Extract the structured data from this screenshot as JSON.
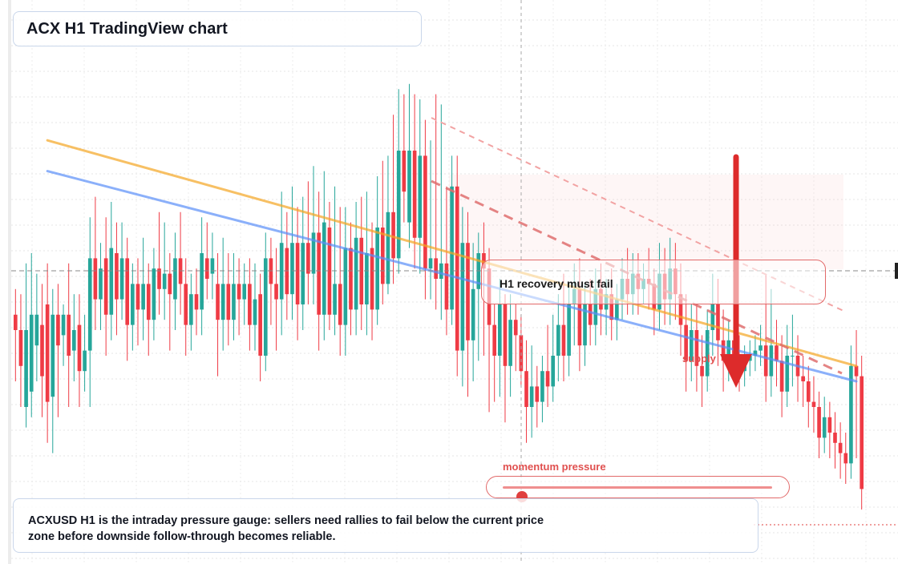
{
  "title": "ACX H1 TradingView chart",
  "callout": "H1 recovery must fail",
  "supply_label": "supply",
  "gauge": {
    "label": "momentum pressure",
    "value": 0.07
  },
  "note": "ACXUSD H1 is the intraday pressure gauge: sellers need rallies to fail below the current price zone before downside follow-through becomes reliable.",
  "colors": {
    "up": "#26a69a",
    "down": "#ef3b45",
    "trend_orange": "#f5a623",
    "trend_blue": "#5b8ff9",
    "accent": "#e0403f"
  },
  "chart_data": {
    "type": "candlestick",
    "title": "ACX H1 TradingView chart",
    "ylim": [
      0,
      100
    ],
    "grid": true,
    "candles": [
      {
        "o": 48,
        "c": 45,
        "h": 53,
        "l": 35
      },
      {
        "o": 45,
        "c": 38,
        "h": 52,
        "l": 30
      },
      {
        "o": 30,
        "c": 45,
        "h": 58,
        "l": 26
      },
      {
        "o": 33,
        "c": 48,
        "h": 60,
        "l": 28
      },
      {
        "o": 42,
        "c": 48,
        "h": 56,
        "l": 35
      },
      {
        "o": 46,
        "c": 36,
        "h": 54,
        "l": 28
      },
      {
        "o": 50,
        "c": 31,
        "h": 58,
        "l": 23
      },
      {
        "o": 32,
        "c": 48,
        "h": 53,
        "l": 21
      },
      {
        "o": 48,
        "c": 42,
        "h": 54,
        "l": 28
      },
      {
        "o": 44,
        "c": 48,
        "h": 50,
        "l": 38
      },
      {
        "o": 48,
        "c": 40,
        "h": 58,
        "l": 30
      },
      {
        "o": 41,
        "c": 45,
        "h": 52,
        "l": 35
      },
      {
        "o": 46,
        "c": 37,
        "h": 52,
        "l": 30
      },
      {
        "o": 37,
        "c": 41,
        "h": 48,
        "l": 33
      },
      {
        "o": 41,
        "c": 59,
        "h": 67,
        "l": 30
      },
      {
        "o": 59,
        "c": 51,
        "h": 71,
        "l": 45
      },
      {
        "o": 51,
        "c": 57,
        "h": 62,
        "l": 45
      },
      {
        "o": 59,
        "c": 48,
        "h": 67,
        "l": 40
      },
      {
        "o": 48,
        "c": 61,
        "h": 70,
        "l": 43
      },
      {
        "o": 60,
        "c": 51,
        "h": 66,
        "l": 44
      },
      {
        "o": 51,
        "c": 59,
        "h": 66,
        "l": 47
      },
      {
        "o": 59,
        "c": 46,
        "h": 63,
        "l": 39
      },
      {
        "o": 46,
        "c": 54,
        "h": 58,
        "l": 41
      },
      {
        "o": 54,
        "c": 49,
        "h": 59,
        "l": 42
      },
      {
        "o": 49,
        "c": 54,
        "h": 63,
        "l": 43
      },
      {
        "o": 54,
        "c": 47,
        "h": 58,
        "l": 40
      },
      {
        "o": 47,
        "c": 57,
        "h": 61,
        "l": 43
      },
      {
        "o": 57,
        "c": 53,
        "h": 68,
        "l": 48
      },
      {
        "o": 53,
        "c": 56,
        "h": 66,
        "l": 47
      },
      {
        "o": 56,
        "c": 52,
        "h": 60,
        "l": 41
      },
      {
        "o": 51,
        "c": 59,
        "h": 64,
        "l": 45
      },
      {
        "o": 59,
        "c": 54,
        "h": 68,
        "l": 48
      },
      {
        "o": 54,
        "c": 46,
        "h": 59,
        "l": 40
      },
      {
        "o": 46,
        "c": 52,
        "h": 56,
        "l": 41
      },
      {
        "o": 52,
        "c": 49,
        "h": 57,
        "l": 44
      },
      {
        "o": 49,
        "c": 60,
        "h": 67,
        "l": 44
      },
      {
        "o": 59,
        "c": 55,
        "h": 66,
        "l": 51
      },
      {
        "o": 56,
        "c": 59,
        "h": 64,
        "l": 51
      },
      {
        "o": 54,
        "c": 47,
        "h": 60,
        "l": 36
      },
      {
        "o": 47,
        "c": 54,
        "h": 63,
        "l": 41
      },
      {
        "o": 54,
        "c": 47,
        "h": 60,
        "l": 42
      },
      {
        "o": 47,
        "c": 54,
        "h": 60,
        "l": 43
      },
      {
        "o": 54,
        "c": 51,
        "h": 59,
        "l": 44
      },
      {
        "o": 51,
        "c": 54,
        "h": 58,
        "l": 46
      },
      {
        "o": 54,
        "c": 46,
        "h": 59,
        "l": 41
      },
      {
        "o": 46,
        "c": 51,
        "h": 58,
        "l": 41
      },
      {
        "o": 52,
        "c": 40,
        "h": 56,
        "l": 35
      },
      {
        "o": 40,
        "c": 59,
        "h": 64,
        "l": 37
      },
      {
        "o": 59,
        "c": 54,
        "h": 63,
        "l": 46
      },
      {
        "o": 54,
        "c": 51,
        "h": 61,
        "l": 41
      },
      {
        "o": 51,
        "c": 62,
        "h": 72,
        "l": 44
      },
      {
        "o": 61,
        "c": 52,
        "h": 68,
        "l": 47
      },
      {
        "o": 52,
        "c": 62,
        "h": 73,
        "l": 47
      },
      {
        "o": 62,
        "c": 50,
        "h": 69,
        "l": 43
      },
      {
        "o": 50,
        "c": 62,
        "h": 71,
        "l": 45
      },
      {
        "o": 62,
        "c": 56,
        "h": 74,
        "l": 50
      },
      {
        "o": 56,
        "c": 64,
        "h": 77,
        "l": 50
      },
      {
        "o": 64,
        "c": 48,
        "h": 72,
        "l": 41
      },
      {
        "o": 48,
        "c": 66,
        "h": 76,
        "l": 43
      },
      {
        "o": 65,
        "c": 48,
        "h": 70,
        "l": 45
      },
      {
        "o": 48,
        "c": 54,
        "h": 73,
        "l": 44
      },
      {
        "o": 54,
        "c": 46,
        "h": 69,
        "l": 40
      },
      {
        "o": 46,
        "c": 61,
        "h": 69,
        "l": 40
      },
      {
        "o": 61,
        "c": 49,
        "h": 66,
        "l": 44
      },
      {
        "o": 49,
        "c": 63,
        "h": 70,
        "l": 44
      },
      {
        "o": 63,
        "c": 50,
        "h": 71,
        "l": 45
      },
      {
        "o": 50,
        "c": 60,
        "h": 72,
        "l": 44
      },
      {
        "o": 61,
        "c": 49,
        "h": 66,
        "l": 43
      },
      {
        "o": 49,
        "c": 65,
        "h": 75,
        "l": 46
      },
      {
        "o": 65,
        "c": 54,
        "h": 78,
        "l": 50
      },
      {
        "o": 54,
        "c": 68,
        "h": 79,
        "l": 52
      },
      {
        "o": 68,
        "c": 59,
        "h": 87,
        "l": 54
      },
      {
        "o": 59,
        "c": 80,
        "h": 92,
        "l": 56
      },
      {
        "o": 80,
        "c": 72,
        "h": 91,
        "l": 66
      },
      {
        "o": 66,
        "c": 80,
        "h": 93,
        "l": 61
      },
      {
        "o": 80,
        "c": 63,
        "h": 91,
        "l": 57
      },
      {
        "o": 63,
        "c": 79,
        "h": 90,
        "l": 56
      },
      {
        "o": 79,
        "c": 57,
        "h": 86,
        "l": 51
      },
      {
        "o": 57,
        "c": 59,
        "h": 82,
        "l": 51
      },
      {
        "o": 59,
        "c": 55,
        "h": 91,
        "l": 49
      },
      {
        "o": 55,
        "c": 58,
        "h": 89,
        "l": 47
      },
      {
        "o": 58,
        "c": 49,
        "h": 73,
        "l": 44
      },
      {
        "o": 49,
        "c": 73,
        "h": 79,
        "l": 46
      },
      {
        "o": 73,
        "c": 41,
        "h": 79,
        "l": 36
      },
      {
        "o": 41,
        "c": 62,
        "h": 69,
        "l": 34
      },
      {
        "o": 62,
        "c": 43,
        "h": 68,
        "l": 32
      },
      {
        "o": 43,
        "c": 53,
        "h": 62,
        "l": 35
      },
      {
        "o": 53,
        "c": 60,
        "h": 64,
        "l": 39
      },
      {
        "o": 60,
        "c": 57,
        "h": 66,
        "l": 40
      },
      {
        "o": 57,
        "c": 46,
        "h": 61,
        "l": 29
      },
      {
        "o": 46,
        "c": 40,
        "h": 50,
        "l": 31
      },
      {
        "o": 40,
        "c": 50,
        "h": 55,
        "l": 32
      },
      {
        "o": 50,
        "c": 38,
        "h": 52,
        "l": 27
      },
      {
        "o": 38,
        "c": 47,
        "h": 52,
        "l": 32
      },
      {
        "o": 47,
        "c": 44,
        "h": 50,
        "l": 37
      },
      {
        "o": 44,
        "c": 37,
        "h": 48,
        "l": 34
      },
      {
        "o": 37,
        "c": 30,
        "h": 43,
        "l": 23
      },
      {
        "o": 30,
        "c": 34,
        "h": 42,
        "l": 24
      },
      {
        "o": 34,
        "c": 31,
        "h": 38,
        "l": 26
      },
      {
        "o": 31,
        "c": 37,
        "h": 40,
        "l": 27
      },
      {
        "o": 37,
        "c": 34,
        "h": 46,
        "l": 30
      },
      {
        "o": 34,
        "c": 40,
        "h": 48,
        "l": 31
      },
      {
        "o": 40,
        "c": 46,
        "h": 52,
        "l": 35
      },
      {
        "o": 46,
        "c": 40,
        "h": 56,
        "l": 35
      },
      {
        "o": 40,
        "c": 50,
        "h": 54,
        "l": 36
      },
      {
        "o": 50,
        "c": 53,
        "h": 58,
        "l": 42
      },
      {
        "o": 53,
        "c": 42,
        "h": 59,
        "l": 37
      },
      {
        "o": 42,
        "c": 50,
        "h": 54,
        "l": 38
      },
      {
        "o": 50,
        "c": 46,
        "h": 55,
        "l": 42
      },
      {
        "o": 46,
        "c": 53,
        "h": 57,
        "l": 42
      },
      {
        "o": 53,
        "c": 49,
        "h": 58,
        "l": 44
      },
      {
        "o": 49,
        "c": 52,
        "h": 55,
        "l": 44
      },
      {
        "o": 52,
        "c": 47,
        "h": 57,
        "l": 43
      },
      {
        "o": 47,
        "c": 51,
        "h": 54,
        "l": 43
      },
      {
        "o": 51,
        "c": 55,
        "h": 59,
        "l": 47
      },
      {
        "o": 55,
        "c": 52,
        "h": 61,
        "l": 48
      },
      {
        "o": 52,
        "c": 56,
        "h": 60,
        "l": 48
      },
      {
        "o": 56,
        "c": 53,
        "h": 60,
        "l": 48
      },
      {
        "o": 53,
        "c": 55,
        "h": 58,
        "l": 50
      },
      {
        "o": 55,
        "c": 54,
        "h": 61,
        "l": 49
      },
      {
        "o": 54,
        "c": 49,
        "h": 57,
        "l": 44
      },
      {
        "o": 49,
        "c": 56,
        "h": 62,
        "l": 45
      },
      {
        "o": 56,
        "c": 51,
        "h": 61,
        "l": 46
      },
      {
        "o": 51,
        "c": 57,
        "h": 63,
        "l": 46
      },
      {
        "o": 57,
        "c": 52,
        "h": 62,
        "l": 47
      },
      {
        "o": 52,
        "c": 46,
        "h": 58,
        "l": 40
      },
      {
        "o": 46,
        "c": 39,
        "h": 52,
        "l": 33
      },
      {
        "o": 39,
        "c": 45,
        "h": 50,
        "l": 35
      },
      {
        "o": 45,
        "c": 38,
        "h": 50,
        "l": 33
      },
      {
        "o": 38,
        "c": 36,
        "h": 44,
        "l": 30
      },
      {
        "o": 36,
        "c": 45,
        "h": 49,
        "l": 33
      },
      {
        "o": 45,
        "c": 50,
        "h": 56,
        "l": 40
      },
      {
        "o": 50,
        "c": 43,
        "h": 55,
        "l": 38
      },
      {
        "o": 43,
        "c": 39,
        "h": 49,
        "l": 33
      },
      {
        "o": 39,
        "c": 43,
        "h": 47,
        "l": 35
      },
      {
        "o": 43,
        "c": 40,
        "h": 45,
        "l": 36
      },
      {
        "o": 40,
        "c": 37,
        "h": 44,
        "l": 33
      },
      {
        "o": 37,
        "c": 39,
        "h": 42,
        "l": 34
      },
      {
        "o": 39,
        "c": 40,
        "h": 43,
        "l": 36
      },
      {
        "o": 40,
        "c": 41,
        "h": 44,
        "l": 37
      },
      {
        "o": 41,
        "c": 42,
        "h": 46,
        "l": 38
      },
      {
        "o": 42,
        "c": 36,
        "h": 56,
        "l": 31
      },
      {
        "o": 36,
        "c": 42,
        "h": 53,
        "l": 32
      },
      {
        "o": 42,
        "c": 39,
        "h": 47,
        "l": 34
      },
      {
        "o": 39,
        "c": 33,
        "h": 44,
        "l": 28
      },
      {
        "o": 33,
        "c": 40,
        "h": 46,
        "l": 30
      },
      {
        "o": 40,
        "c": 40,
        "h": 48,
        "l": 34
      },
      {
        "o": 40,
        "c": 36,
        "h": 44,
        "l": 31
      },
      {
        "o": 36,
        "c": 35,
        "h": 40,
        "l": 30
      },
      {
        "o": 35,
        "c": 31,
        "h": 38,
        "l": 26
      },
      {
        "o": 31,
        "c": 30,
        "h": 36,
        "l": 25
      },
      {
        "o": 30,
        "c": 24,
        "h": 33,
        "l": 20
      },
      {
        "o": 24,
        "c": 28,
        "h": 32,
        "l": 21
      },
      {
        "o": 28,
        "c": 25,
        "h": 31,
        "l": 20
      },
      {
        "o": 25,
        "c": 23,
        "h": 29,
        "l": 18
      },
      {
        "o": 23,
        "c": 21,
        "h": 27,
        "l": 16
      },
      {
        "o": 21,
        "c": 19,
        "h": 25,
        "l": 15
      },
      {
        "o": 19,
        "c": 38,
        "h": 42,
        "l": 16
      },
      {
        "o": 38,
        "c": 36,
        "h": 45,
        "l": 20
      },
      {
        "o": 36,
        "c": 14,
        "h": 40,
        "l": 10
      }
    ],
    "trendlines": [
      {
        "name": "",
        "color": "orange",
        "from": [
          6,
          82
        ],
        "to": [
          158,
          38
        ]
      },
      {
        "name": "",
        "color": "blue",
        "from": [
          6,
          76
        ],
        "to": [
          158,
          35
        ]
      }
    ]
  }
}
